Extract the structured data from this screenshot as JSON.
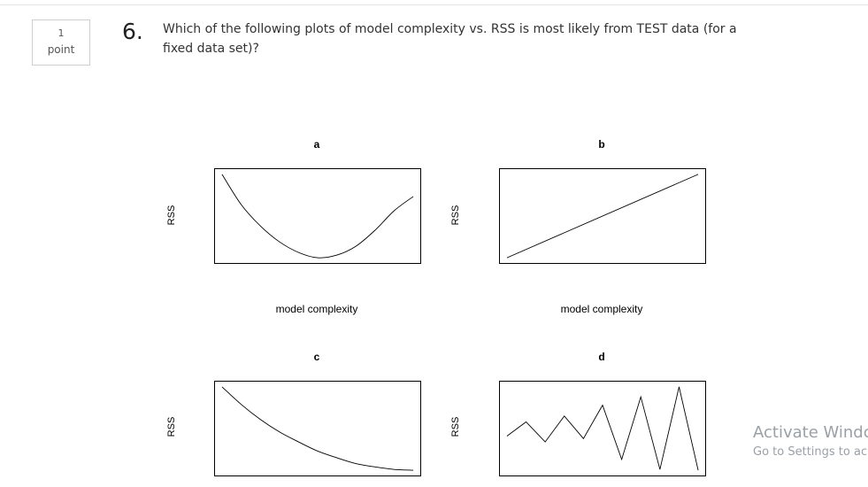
{
  "question": {
    "points_value": "1",
    "points_unit": "point",
    "number": "6.",
    "text": "Which of the following plots of model complexity vs. RSS is most likely from TEST data (for a fixed data set)?"
  },
  "chart_data": [
    {
      "type": "line",
      "title": "a",
      "xlabel": "model complexity",
      "ylabel": "RSS",
      "x": [
        0,
        1,
        2,
        3,
        4,
        5,
        6,
        7,
        8,
        9,
        10
      ],
      "y": [
        9.7,
        6.3,
        3.9,
        2.1,
        0.9,
        0.3,
        0.6,
        1.6,
        3.4,
        5.6,
        7.2
      ],
      "axes": false
    },
    {
      "type": "line",
      "title": "b",
      "xlabel": "model complexity",
      "ylabel": "RSS",
      "x": [
        0,
        10
      ],
      "y": [
        0,
        10
      ],
      "axes": false
    },
    {
      "type": "line",
      "title": "c",
      "xlabel": "",
      "ylabel": "RSS",
      "x": [
        0,
        1,
        2,
        3,
        4,
        5,
        6,
        7,
        8,
        9,
        10
      ],
      "y": [
        10,
        7.9,
        6.1,
        4.6,
        3.4,
        2.3,
        1.5,
        0.8,
        0.4,
        0.1,
        0
      ],
      "axes": false
    },
    {
      "type": "line",
      "title": "d",
      "xlabel": "",
      "ylabel": "RSS",
      "x": [
        0,
        1,
        2,
        3,
        4,
        5,
        6,
        7,
        8,
        9,
        10
      ],
      "y": [
        4.1,
        5.8,
        3.4,
        6.5,
        3.8,
        7.8,
        1.3,
        8.8,
        0.1,
        10.0,
        0.0
      ],
      "axes": false
    }
  ],
  "watermark": {
    "title": "Activate Windc",
    "subtitle": "Go to Settings to ac"
  }
}
